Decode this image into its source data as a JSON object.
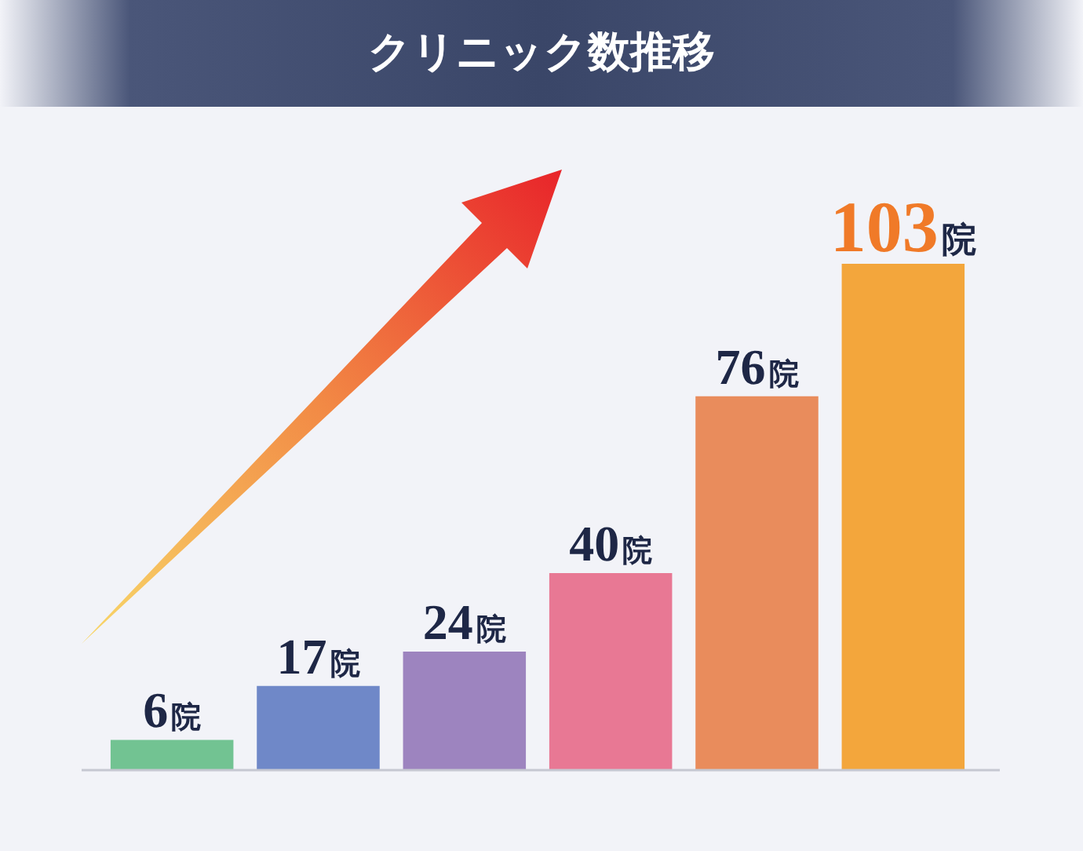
{
  "chart_data": {
    "type": "bar",
    "title": "クリニック数推移",
    "categories": [
      null,
      null,
      null,
      null,
      null,
      null
    ],
    "values": [
      6,
      17,
      24,
      40,
      76,
      103
    ],
    "colors": [
      "#72c392",
      "#6f88c8",
      "#9d84bf",
      "#e87894",
      "#e98c5c",
      "#f3a63c"
    ],
    "value_labels": [
      "6院",
      "17院",
      "24院",
      "40院",
      "76院",
      "103院"
    ],
    "legend": false,
    "grid": false
  }
}
